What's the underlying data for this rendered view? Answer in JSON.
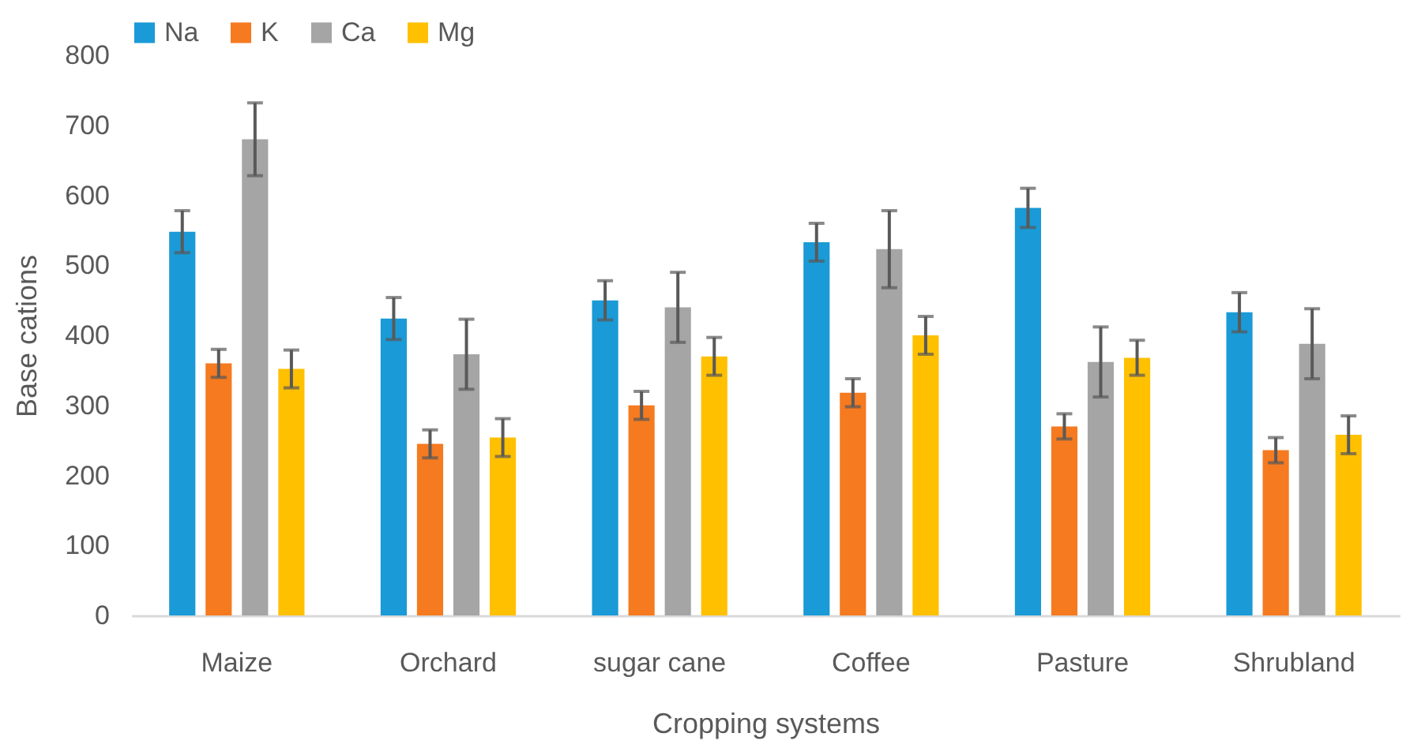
{
  "chart_data": {
    "type": "bar",
    "xlabel": "Cropping systems",
    "ylabel": "Base cations",
    "categories": [
      "Maize",
      "Orchard",
      "sugar cane",
      "Coffee",
      "Pasture",
      "Shrubland"
    ],
    "series": [
      {
        "name": "Na",
        "color": "#1a9ad6",
        "values": [
          548,
          424,
          450,
          533,
          582,
          433
        ],
        "errors": [
          30,
          30,
          28,
          27,
          28,
          28
        ]
      },
      {
        "name": "K",
        "color": "#f57a20",
        "values": [
          360,
          245,
          300,
          318,
          270,
          236
        ],
        "errors": [
          20,
          20,
          20,
          20,
          18,
          18
        ]
      },
      {
        "name": "Ca",
        "color": "#a5a5a5",
        "values": [
          680,
          373,
          440,
          523,
          362,
          388
        ],
        "errors": [
          52,
          50,
          50,
          55,
          50,
          50
        ]
      },
      {
        "name": "Mg",
        "color": "#ffc000",
        "values": [
          352,
          254,
          370,
          400,
          368,
          258
        ],
        "errors": [
          27,
          27,
          27,
          27,
          25,
          27
        ]
      }
    ],
    "ylim": [
      0,
      800
    ],
    "yticks": [
      0,
      100,
      200,
      300,
      400,
      500,
      600,
      700,
      800
    ],
    "grid": false,
    "legend": "top"
  }
}
